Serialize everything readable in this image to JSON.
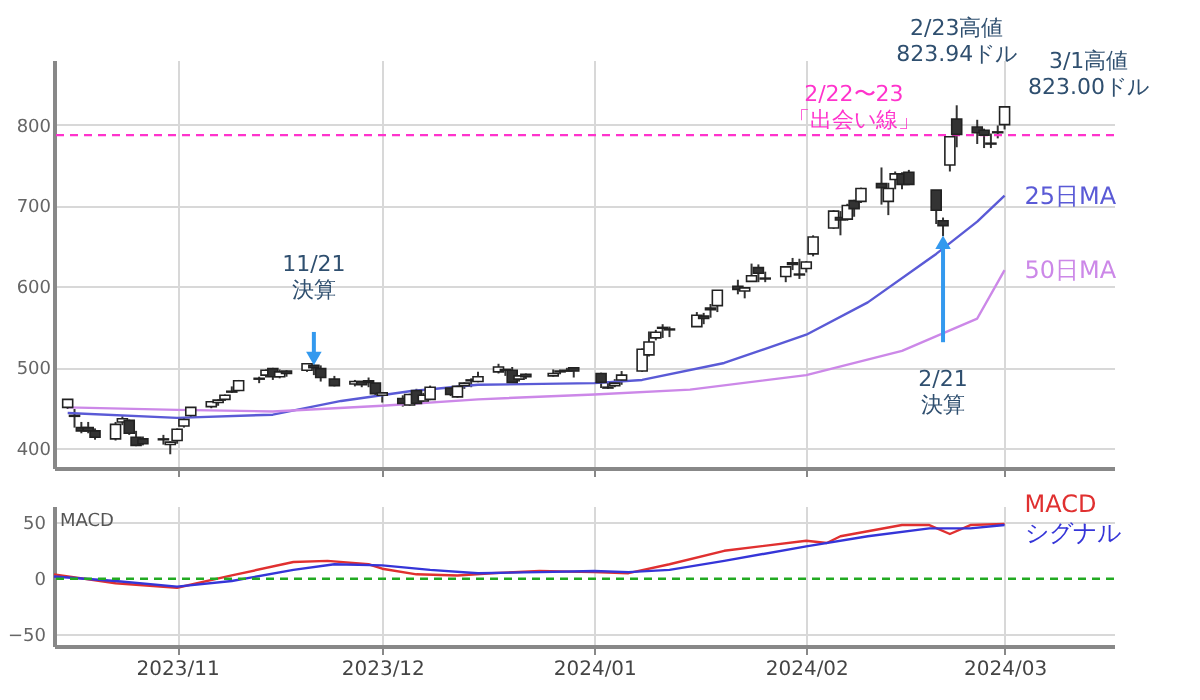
{
  "chart_data": [
    {
      "type": "candlestick",
      "x": [
        "2023-10-16",
        "2023-10-17",
        "2023-10-18",
        "2023-10-19",
        "2023-10-20",
        "2023-10-23",
        "2023-10-24",
        "2023-10-25",
        "2023-10-26",
        "2023-10-27",
        "2023-10-30",
        "2023-10-31",
        "2023-11-01",
        "2023-11-02",
        "2023-11-03",
        "2023-11-06",
        "2023-11-07",
        "2023-11-08",
        "2023-11-09",
        "2023-11-10",
        "2023-11-13",
        "2023-11-14",
        "2023-11-15",
        "2023-11-16",
        "2023-11-17",
        "2023-11-20",
        "2023-11-21",
        "2023-11-22",
        "2023-11-24",
        "2023-11-27",
        "2023-11-28",
        "2023-11-29",
        "2023-11-30",
        "2023-12-01",
        "2023-12-04",
        "2023-12-05",
        "2023-12-06",
        "2023-12-07",
        "2023-12-08",
        "2023-12-11",
        "2023-12-12",
        "2023-12-13",
        "2023-12-14",
        "2023-12-15",
        "2023-12-18",
        "2023-12-19",
        "2023-12-20",
        "2023-12-21",
        "2023-12-22",
        "2023-12-26",
        "2023-12-27",
        "2023-12-28",
        "2023-12-29",
        "2024-01-02",
        "2024-01-03",
        "2024-01-04",
        "2024-01-05",
        "2024-01-08",
        "2024-01-09",
        "2024-01-10",
        "2024-01-11",
        "2024-01-12",
        "2024-01-16",
        "2024-01-17",
        "2024-01-18",
        "2024-01-19",
        "2024-01-22",
        "2024-01-23",
        "2024-01-24",
        "2024-01-25",
        "2024-01-26",
        "2024-01-29",
        "2024-01-30",
        "2024-01-31",
        "2024-02-01",
        "2024-02-02",
        "2024-02-05",
        "2024-02-06",
        "2024-02-07",
        "2024-02-08",
        "2024-02-09",
        "2024-02-12",
        "2024-02-13",
        "2024-02-14",
        "2024-02-15",
        "2024-02-16",
        "2024-02-20",
        "2024-02-21",
        "2024-02-22",
        "2024-02-23",
        "2024-02-26",
        "2024-02-27",
        "2024-02-28",
        "2024-02-29",
        "2024-03-01"
      ],
      "ohlc": [
        [
          450,
          460,
          448,
          460
        ],
        [
          440,
          448,
          425,
          439
        ],
        [
          425,
          432,
          418,
          421
        ],
        [
          425,
          432,
          418,
          421
        ],
        [
          421,
          424,
          410,
          413
        ],
        [
          411,
          432,
          409,
          429
        ],
        [
          432,
          439,
          428,
          436
        ],
        [
          434,
          435,
          416,
          418
        ],
        [
          413,
          421,
          402,
          403
        ],
        [
          411,
          414,
          403,
          405
        ],
        [
          410,
          416,
          404,
          411
        ],
        [
          404,
          408,
          392,
          407
        ],
        [
          409,
          424,
          405,
          423
        ],
        [
          427,
          437,
          425,
          435
        ],
        [
          440,
          450,
          438,
          450
        ],
        [
          451,
          458,
          449,
          457
        ],
        [
          456,
          460,
          452,
          459
        ],
        [
          460,
          466,
          458,
          465
        ],
        [
          470,
          476,
          468,
          469
        ],
        [
          471,
          484,
          470,
          483
        ],
        [
          485,
          488,
          480,
          486
        ],
        [
          490,
          497,
          487,
          496
        ],
        [
          498,
          499,
          484,
          488
        ],
        [
          488,
          497,
          486,
          494
        ],
        [
          495,
          496,
          488,
          492
        ],
        [
          496,
          505,
          494,
          504
        ],
        [
          502,
          503,
          490,
          499
        ],
        [
          498,
          502,
          482,
          487
        ],
        [
          485,
          489,
          476,
          477
        ],
        [
          479,
          484,
          476,
          482
        ],
        [
          482,
          483,
          475,
          478
        ],
        [
          483,
          487,
          475,
          481
        ],
        [
          480,
          480,
          463,
          467
        ],
        [
          465,
          468,
          456,
          468
        ],
        [
          461,
          465,
          451,
          455
        ],
        [
          453,
          467,
          452,
          466
        ],
        [
          471,
          473,
          454,
          455
        ],
        [
          458,
          468,
          456,
          465
        ],
        [
          460,
          477,
          459,
          475
        ],
        [
          474,
          474,
          464,
          466
        ],
        [
          463,
          477,
          462,
          476
        ],
        [
          477,
          481,
          473,
          480
        ],
        [
          484,
          486,
          475,
          483
        ],
        [
          482,
          494,
          481,
          488
        ],
        [
          494,
          504,
          492,
          500
        ],
        [
          497,
          497,
          489,
          496
        ],
        [
          496,
          500,
          481,
          481
        ],
        [
          485,
          490,
          482,
          489
        ],
        [
          491,
          492,
          485,
          488
        ],
        [
          489,
          497,
          488,
          492
        ],
        [
          495,
          497,
          491,
          494
        ],
        [
          496,
          499,
          494,
          495
        ],
        [
          499,
          500,
          487,
          495
        ],
        [
          492,
          493,
          474,
          481
        ],
        [
          474,
          481,
          473,
          475
        ],
        [
          477,
          485,
          475,
          480
        ],
        [
          484,
          495,
          478,
          490
        ],
        [
          495,
          523,
          494,
          522
        ],
        [
          515,
          544,
          513,
          531
        ],
        [
          536,
          546,
          533,
          543
        ],
        [
          549,
          553,
          536,
          548
        ],
        [
          546,
          550,
          537,
          547
        ],
        [
          550,
          568,
          550,
          564
        ],
        [
          563,
          567,
          553,
          560
        ],
        [
          573,
          578,
          561,
          571
        ],
        [
          576,
          595,
          568,
          595
        ],
        [
          600,
          608,
          590,
          596
        ],
        [
          594,
          599,
          585,
          598
        ],
        [
          606,
          628,
          606,
          613
        ],
        [
          623,
          627,
          605,
          616
        ],
        [
          609,
          618,
          605,
          610
        ],
        [
          612,
          625,
          605,
          624
        ],
        [
          629,
          635,
          620,
          627
        ],
        [
          614,
          634,
          609,
          615
        ],
        [
          622,
          631,
          617,
          630
        ],
        [
          640,
          663,
          637,
          661
        ],
        [
          672,
          694,
          671,
          693
        ],
        [
          685,
          693,
          663,
          682
        ],
        [
          683,
          702,
          681,
          700
        ],
        [
          706,
          707,
          686,
          696
        ],
        [
          705,
          722,
          703,
          721
        ],
        [
          727,
          747,
          701,
          722
        ],
        [
          705,
          728,
          688,
          721
        ],
        [
          732,
          742,
          720,
          739
        ],
        [
          739,
          741,
          720,
          726
        ],
        [
          741,
          744,
          725,
          726
        ],
        [
          719,
          719,
          677,
          694
        ],
        [
          681,
          685,
          662,
          675
        ],
        [
          750,
          785,
          742,
          785
        ],
        [
          807,
          823.94,
          772,
          788
        ],
        [
          797,
          806,
          776,
          790
        ],
        [
          793,
          795,
          771,
          787
        ],
        [
          776,
          789,
          771,
          777
        ],
        [
          790,
          799,
          783,
          791
        ],
        [
          800,
          823.0,
          794,
          822
        ]
      ],
      "series": [
        {
          "name": "25日MA",
          "color": "#5a5ad6",
          "type": "line",
          "x": [
            "2023-10-16",
            "2023-11-01",
            "2023-11-15",
            "2023-11-25",
            "2023-12-05",
            "2023-12-15",
            "2024-01-01",
            "2024-01-08",
            "2024-01-20",
            "2024-02-01",
            "2024-02-10",
            "2024-02-20",
            "2024-02-26",
            "2024-03-01"
          ],
          "values": [
            443,
            437,
            441,
            458,
            470,
            478,
            480,
            484,
            505,
            540,
            580,
            640,
            680,
            712
          ]
        },
        {
          "name": "50日MA",
          "color": "#cc88e8",
          "type": "line",
          "x": [
            "2023-10-16",
            "2023-11-01",
            "2023-11-15",
            "2023-12-01",
            "2023-12-15",
            "2024-01-01",
            "2024-01-15",
            "2024-02-01",
            "2024-02-15",
            "2024-02-26",
            "2024-03-01"
          ],
          "values": [
            450,
            447,
            445,
            452,
            460,
            466,
            472,
            490,
            520,
            560,
            620
          ]
        }
      ],
      "xlim": [
        "2023-10-14",
        "2024-03-17"
      ],
      "xticks": [
        {
          "value": "2023-11-01",
          "label": null
        },
        {
          "value": "2023-12-01",
          "label": null
        },
        {
          "value": "2024-01-01",
          "label": null
        },
        {
          "value": "2024-02-01",
          "label": null
        },
        {
          "value": "2024-03-01",
          "label": null
        }
      ],
      "ylim": [
        375,
        880
      ],
      "yticks": [
        400,
        500,
        600,
        700,
        800
      ],
      "tick_labels": "y",
      "grid": true,
      "ref_lines": [
        {
          "axis": "y",
          "value": 787,
          "color": "#ff33cc",
          "line_style": "dashed"
        }
      ],
      "annotations": [
        {
          "text": "11/21\n決算",
          "x": "2023-11-21",
          "y": 503
        },
        {
          "text": "2/21\n決算",
          "x": "2024-02-21",
          "y": 662
        },
        {
          "text": "2/22〜23\n「出会い線」",
          "x": "2024-02-22",
          "y": 787
        },
        {
          "text": "2/23高値\n823.94ドル",
          "x": "2024-02-23",
          "y": 823.94
        },
        {
          "text": "3/1高値\n823.00ドル",
          "x": "2024-03-01",
          "y": 823.0
        }
      ]
    },
    {
      "type": "line",
      "series": [
        {
          "name": "MACD",
          "color": "#e03030",
          "x": [
            "2023-10-14",
            "2023-10-23",
            "2023-11-01",
            "2023-11-09",
            "2023-11-18",
            "2023-11-23",
            "2023-11-29",
            "2023-12-01",
            "2023-12-06",
            "2023-12-12",
            "2023-12-17",
            "2023-12-24",
            "2024-01-01",
            "2024-01-06",
            "2024-01-12",
            "2024-01-20",
            "2024-02-01",
            "2024-02-04",
            "2024-02-06",
            "2024-02-15",
            "2024-02-19",
            "2024-02-22",
            "2024-02-25",
            "2024-03-01"
          ],
          "values": [
            4,
            -4,
            -8,
            3,
            15,
            16,
            13,
            9,
            4,
            3,
            5,
            7,
            6,
            5,
            13,
            25,
            34,
            32,
            38,
            48,
            48,
            40,
            48,
            49
          ]
        },
        {
          "name": "シグナル",
          "color": "#3535d8",
          "x": [
            "2023-10-14",
            "2023-10-23",
            "2023-11-01",
            "2023-11-09",
            "2023-11-18",
            "2023-11-24",
            "2023-12-01",
            "2023-12-08",
            "2023-12-15",
            "2023-12-24",
            "2024-01-01",
            "2024-01-06",
            "2024-01-12",
            "2024-01-20",
            "2024-02-01",
            "2024-02-10",
            "2024-02-19",
            "2024-02-25",
            "2024-03-01"
          ],
          "values": [
            2,
            -2,
            -7,
            -2,
            8,
            13,
            12,
            8,
            5,
            6,
            7,
            6,
            8,
            16,
            29,
            38,
            45,
            45,
            48
          ]
        }
      ],
      "xlim": [
        "2023-10-14",
        "2024-03-17"
      ],
      "xticks": [
        {
          "value": "2023-11-01",
          "label": "2023/11"
        },
        {
          "value": "2023-12-01",
          "label": "2023/12"
        },
        {
          "value": "2024-01-01",
          "label": "2024/01"
        },
        {
          "value": "2024-02-01",
          "label": "2024/02"
        },
        {
          "value": "2024-03-01",
          "label": "2024/03"
        }
      ],
      "ylim": [
        -60,
        65
      ],
      "yticks": [
        -50,
        0,
        50
      ],
      "grid": true,
      "ref_lines": [
        {
          "axis": "y",
          "value": 0,
          "color": "#22aa22",
          "line_style": "dashed"
        }
      ],
      "annotations": [
        "MACD"
      ]
    }
  ]
}
